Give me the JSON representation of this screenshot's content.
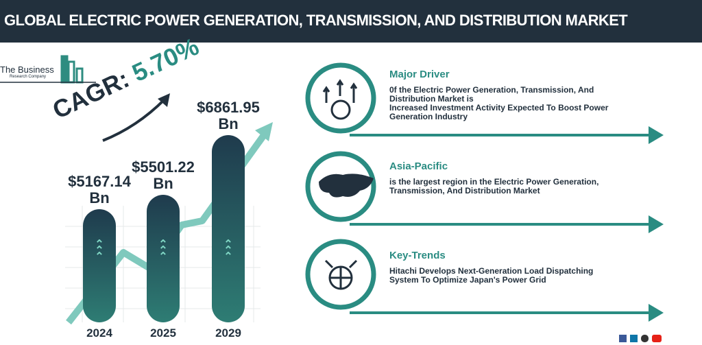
{
  "header": {
    "title": "GLOBAL ELECTRIC POWER GENERATION, TRANSMISSION, AND DISTRIBUTION MARKET"
  },
  "logo": {
    "name": "The Business",
    "sub": "Research Company"
  },
  "cagr": {
    "label": "CAGR:",
    "value": "5.70%"
  },
  "chart_data": {
    "type": "bar",
    "categories": [
      "2024",
      "2025",
      "2029"
    ],
    "values": [
      5167.14,
      5501.22,
      6861.95
    ],
    "value_labels": [
      "$5167.14\nBn",
      "$5501.22\nBn",
      "$6861.95\nBn"
    ],
    "color": "#1f3b4d"
  },
  "panels": [
    {
      "heading": "Major Driver",
      "lines": [
        "0f the Electric Power Generation, Transmission, And",
        "Distribution Market is",
        "Increased Investment Activity Expected To Boost Power",
        "Generation Industry"
      ]
    },
    {
      "heading": "Asia-Pacific",
      "lines": [
        "is the largest region in the Electric Power Generation,",
        "Transmission, And Distribution Market"
      ]
    },
    {
      "heading": "Key-Trends",
      "lines": [
        "Hitachi Develops Next-Generation Load Dispatching",
        "System To Optimize Japan's Power Grid"
      ]
    }
  ]
}
